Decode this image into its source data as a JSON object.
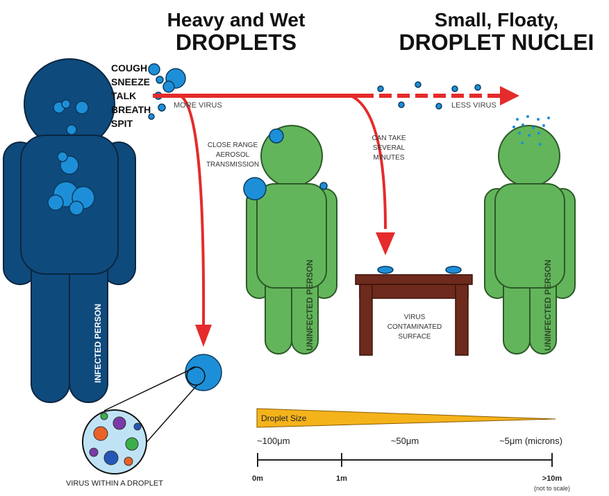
{
  "titles": {
    "left": {
      "line1": "Heavy and Wet",
      "line2": "DROPLETS"
    },
    "right": {
      "line1": "Small, Floaty,",
      "line2": "DROPLET NUCLEI"
    }
  },
  "actions": [
    "COUGH",
    "SNEEZE",
    "TALK",
    "BREATH",
    "SPIT"
  ],
  "arrow_labels": {
    "more": "MORE VIRUS",
    "less": "LESS VIRUS"
  },
  "close_range": [
    "CLOSE RANGE",
    "AEROSOL",
    "TRANSMISSION"
  ],
  "delay": [
    "CAN TAKE",
    "SEVERAL",
    "MINUTES"
  ],
  "persons": {
    "infected": "INFECTED PERSON",
    "uninfected_1": "UNINFECTED PERSON",
    "uninfected_2": "UNINFECTED PERSON"
  },
  "surface": [
    "VIRUS",
    "CONTAMINATED",
    "SURFACE"
  ],
  "droplet_caption": "VIRUS WITHIN A DROPLET",
  "size_scale": {
    "title": "Droplet Size",
    "sizes": [
      "~100μm",
      "~50μm",
      "~5μm (microns)"
    ],
    "distances": [
      "0m",
      "1m",
      ">10m"
    ],
    "note": "(not to scale)"
  }
}
